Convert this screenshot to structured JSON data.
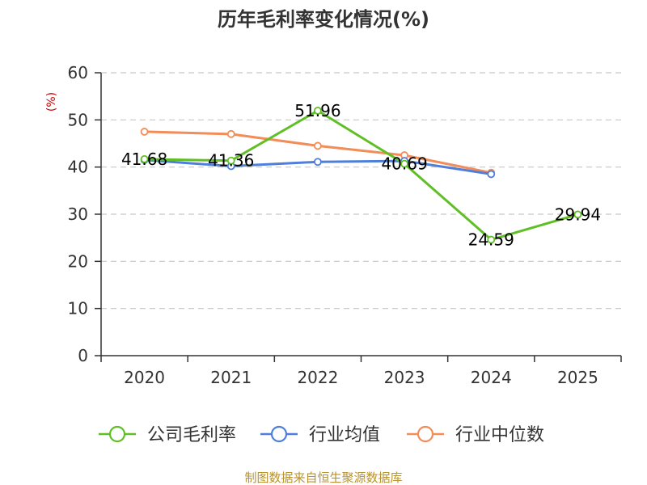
{
  "chart_data": {
    "type": "line",
    "title": "历年毛利率变化情况(%)",
    "ylabel": "(%)",
    "xlabel": "",
    "categories": [
      "2020",
      "2021",
      "2022",
      "2023",
      "2024",
      "2025"
    ],
    "ylim": [
      0,
      60
    ],
    "yticks": [
      0,
      10,
      20,
      30,
      40,
      50,
      60
    ],
    "grid": true,
    "legend_position": "bottom",
    "series": [
      {
        "name": "公司毛利率",
        "color": "#5fbf24",
        "values": [
          41.68,
          41.36,
          51.96,
          40.69,
          24.59,
          29.94
        ],
        "labels": [
          "41.68",
          "41.36",
          "51.96",
          "40.69",
          "24.59",
          "29.94"
        ]
      },
      {
        "name": "行业均值",
        "color": "#4f7fdb",
        "values": [
          41.5,
          40.2,
          41.1,
          41.3,
          38.5,
          null
        ]
      },
      {
        "name": "行业中位数",
        "color": "#f28c58",
        "values": [
          47.5,
          47.0,
          44.5,
          42.5,
          38.8,
          null
        ]
      }
    ],
    "source": "制图数据来自恒生聚源数据库"
  }
}
